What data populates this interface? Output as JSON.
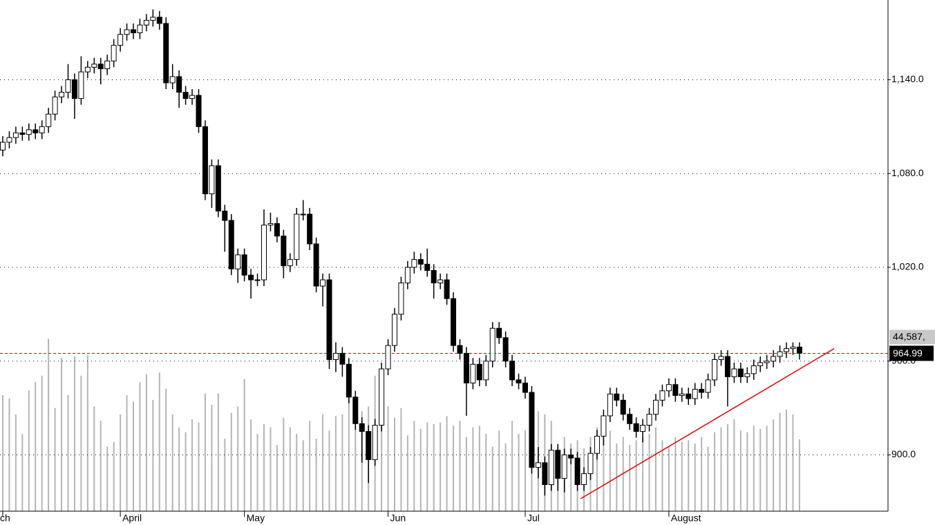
{
  "chart_data": {
    "type": "candlestick",
    "ylim": [
      864,
      1191
    ],
    "yticks": [
      {
        "value": 900,
        "label": "900.0"
      },
      {
        "value": 960,
        "label": "960.0"
      },
      {
        "value": 1020,
        "label": "1,020.0"
      },
      {
        "value": 1080,
        "label": "1,080.0"
      },
      {
        "value": 1140,
        "label": "1,140.0"
      }
    ],
    "grid": true,
    "up_color": "#ffffff",
    "down_color": "#000000",
    "xlabels": [
      {
        "index": 0,
        "label": "ch"
      },
      {
        "index": 18,
        "label": "April"
      },
      {
        "index": 37,
        "label": "May"
      },
      {
        "index": 59,
        "label": "Jun"
      },
      {
        "index": 80,
        "label": "Jul"
      },
      {
        "index": 102,
        "label": "August"
      }
    ],
    "open": [
      1095,
      1100,
      1103,
      1106,
      1105,
      1108,
      1106,
      1110,
      1118,
      1129,
      1132,
      1140,
      1128,
      1145,
      1148,
      1150,
      1147,
      1152,
      1162,
      1169,
      1172,
      1170,
      1175,
      1178,
      1180,
      1176,
      1138,
      1142,
      1132,
      1128,
      1130,
      1110,
      1067,
      1085,
      1056,
      1050,
      1019,
      1028,
      1015,
      1012,
      1012,
      1047,
      1048,
      1040,
      1021,
      1025,
      1054,
      1054,
      1035,
      1008,
      1012,
      961,
      965,
      958,
      937,
      920,
      915,
      897,
      919,
      955,
      970,
      990,
      1010,
      1020,
      1025,
      1022,
      1018,
      1010,
      1012,
      1000,
      970,
      965,
      946,
      958,
      948,
      960,
      981,
      975,
      960,
      948,
      946,
      940,
      892,
      895,
      881,
      903,
      885,
      900,
      898,
      881,
      888,
      901,
      912,
      925,
      939,
      935,
      926,
      920,
      915,
      919,
      926,
      935,
      941,
      945,
      938,
      939,
      936,
      942,
      940,
      948,
      961,
      963,
      950,
      955,
      950,
      952,
      957,
      959,
      960,
      963,
      966,
      968,
      969
    ],
    "high": [
      1104,
      1107,
      1110,
      1110,
      1112,
      1112,
      1114,
      1122,
      1133,
      1136,
      1150,
      1144,
      1155,
      1152,
      1154,
      1154,
      1156,
      1166,
      1173,
      1176,
      1176,
      1179,
      1182,
      1185,
      1184,
      1180,
      1150,
      1146,
      1136,
      1134,
      1134,
      1114,
      1089,
      1089,
      1060,
      1054,
      1032,
      1032,
      1019,
      1016,
      1057,
      1055,
      1052,
      1044,
      1029,
      1058,
      1063,
      1058,
      1039,
      1016,
      1016,
      972,
      969,
      962,
      941,
      924,
      919,
      923,
      959,
      974,
      994,
      1014,
      1024,
      1030,
      1029,
      1032,
      1022,
      1016,
      1016,
      1004,
      974,
      969,
      962,
      962,
      964,
      985,
      985,
      979,
      964,
      952,
      950,
      944,
      905,
      899,
      907,
      907,
      904,
      904,
      902,
      892,
      905,
      916,
      929,
      943,
      943,
      939,
      930,
      924,
      923,
      930,
      939,
      945,
      949,
      949,
      943,
      943,
      946,
      946,
      952,
      965,
      967,
      967,
      959,
      959,
      956,
      961,
      963,
      964,
      967,
      970,
      972,
      972,
      972
    ],
    "low": [
      1091,
      1096,
      1099,
      1101,
      1101,
      1102,
      1102,
      1106,
      1114,
      1125,
      1128,
      1115,
      1124,
      1141,
      1144,
      1137,
      1143,
      1148,
      1158,
      1165,
      1166,
      1166,
      1171,
      1174,
      1172,
      1134,
      1134,
      1122,
      1124,
      1124,
      1106,
      1063,
      1058,
      1052,
      1030,
      1015,
      1010,
      1011,
      1000,
      1008,
      1008,
      1043,
      1036,
      1013,
      1017,
      1021,
      1050,
      1031,
      1004,
      995,
      955,
      953,
      950,
      933,
      916,
      895,
      882,
      893,
      915,
      951,
      966,
      986,
      1006,
      1016,
      1018,
      1014,
      1000,
      1006,
      996,
      966,
      961,
      925,
      942,
      944,
      944,
      956,
      971,
      956,
      944,
      942,
      936,
      888,
      885,
      874,
      877,
      877,
      876,
      894,
      877,
      877,
      884,
      897,
      906,
      921,
      931,
      922,
      916,
      911,
      908,
      915,
      922,
      931,
      937,
      934,
      934,
      932,
      932,
      936,
      936,
      944,
      957,
      931,
      946,
      946,
      946,
      948,
      953,
      955,
      956,
      959,
      962,
      964,
      961
    ],
    "close": [
      1100,
      1103,
      1106,
      1105,
      1108,
      1106,
      1110,
      1118,
      1129,
      1132,
      1140,
      1128,
      1145,
      1148,
      1150,
      1147,
      1152,
      1162,
      1169,
      1172,
      1170,
      1175,
      1178,
      1180,
      1176,
      1138,
      1142,
      1132,
      1128,
      1130,
      1110,
      1067,
      1085,
      1056,
      1050,
      1019,
      1028,
      1015,
      1012,
      1012,
      1047,
      1048,
      1040,
      1021,
      1025,
      1054,
      1054,
      1035,
      1008,
      1012,
      961,
      965,
      958,
      937,
      920,
      915,
      897,
      919,
      955,
      970,
      990,
      1010,
      1020,
      1025,
      1022,
      1018,
      1010,
      1012,
      1000,
      970,
      965,
      946,
      958,
      948,
      960,
      981,
      975,
      960,
      948,
      946,
      940,
      892,
      895,
      881,
      903,
      885,
      900,
      898,
      881,
      888,
      901,
      912,
      925,
      939,
      935,
      926,
      920,
      915,
      919,
      926,
      935,
      941,
      945,
      938,
      939,
      936,
      942,
      940,
      948,
      961,
      963,
      950,
      955,
      950,
      952,
      957,
      959,
      960,
      963,
      966,
      968,
      969,
      965
    ],
    "volume": {
      "color": "#b4b4b4",
      "y2lim": [
        0,
        317000
      ],
      "last_label": "44,587,",
      "values": [
        72000,
        70000,
        60000,
        48000,
        75000,
        80000,
        84000,
        107000,
        64000,
        95000,
        72000,
        96000,
        84000,
        97000,
        65000,
        56000,
        40000,
        43000,
        60000,
        72000,
        68000,
        80000,
        85000,
        69000,
        86000,
        76000,
        60000,
        52000,
        49000,
        57000,
        55000,
        73000,
        66000,
        73000,
        45000,
        61000,
        65000,
        82000,
        57000,
        48000,
        54000,
        52000,
        41000,
        58000,
        52000,
        48000,
        44000,
        56000,
        45000,
        60000,
        50000,
        59000,
        60000,
        78000,
        53000,
        62000,
        65000,
        84000,
        67000,
        65000,
        58000,
        64000,
        47000,
        56000,
        51000,
        55000,
        54000,
        55000,
        59000,
        53000,
        56000,
        46000,
        52000,
        53000,
        48000,
        40000,
        50000,
        42000,
        56000,
        48000,
        50000,
        58000,
        62000,
        60000,
        56000,
        40000,
        46000,
        42000,
        44000,
        39000,
        46000,
        52000,
        48000,
        50000,
        42000,
        46000,
        41000,
        44000,
        46000,
        48000,
        52000,
        44000,
        40000,
        46000,
        43000,
        44000,
        42000,
        46000,
        40000,
        49000,
        52000,
        54000,
        57000,
        50000,
        49000,
        53000,
        51000,
        53000,
        57000,
        61000,
        63000,
        60000,
        44587
      ]
    },
    "last_price": 964.99,
    "last_price_color": "#e00000",
    "trendline": {
      "start": [
        88.5,
        872
      ],
      "end": [
        127.3,
        968
      ],
      "color": "#e00000"
    }
  }
}
